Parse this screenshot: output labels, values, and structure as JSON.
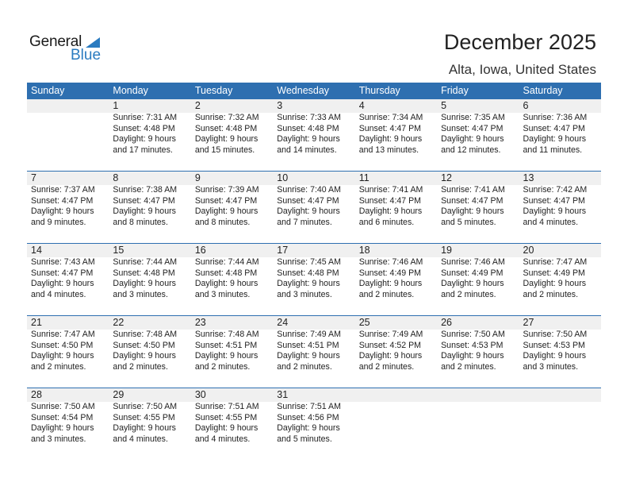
{
  "logo": {
    "word1": "General",
    "word2": "Blue"
  },
  "header": {
    "title": "December 2025",
    "location": "Alta, Iowa, United States"
  },
  "colors": {
    "header_bg": "#2e6fb0",
    "date_band": "#f0f0f0",
    "logo_blue": "#2a7bc0"
  },
  "weekdays": [
    "Sunday",
    "Monday",
    "Tuesday",
    "Wednesday",
    "Thursday",
    "Friday",
    "Saturday"
  ],
  "weeks": [
    [
      null,
      {
        "date": "1",
        "sunrise": "Sunrise: 7:31 AM",
        "sunset": "Sunset: 4:48 PM",
        "daylight1": "Daylight: 9 hours",
        "daylight2": "and 17 minutes."
      },
      {
        "date": "2",
        "sunrise": "Sunrise: 7:32 AM",
        "sunset": "Sunset: 4:48 PM",
        "daylight1": "Daylight: 9 hours",
        "daylight2": "and 15 minutes."
      },
      {
        "date": "3",
        "sunrise": "Sunrise: 7:33 AM",
        "sunset": "Sunset: 4:48 PM",
        "daylight1": "Daylight: 9 hours",
        "daylight2": "and 14 minutes."
      },
      {
        "date": "4",
        "sunrise": "Sunrise: 7:34 AM",
        "sunset": "Sunset: 4:47 PM",
        "daylight1": "Daylight: 9 hours",
        "daylight2": "and 13 minutes."
      },
      {
        "date": "5",
        "sunrise": "Sunrise: 7:35 AM",
        "sunset": "Sunset: 4:47 PM",
        "daylight1": "Daylight: 9 hours",
        "daylight2": "and 12 minutes."
      },
      {
        "date": "6",
        "sunrise": "Sunrise: 7:36 AM",
        "sunset": "Sunset: 4:47 PM",
        "daylight1": "Daylight: 9 hours",
        "daylight2": "and 11 minutes."
      }
    ],
    [
      {
        "date": "7",
        "sunrise": "Sunrise: 7:37 AM",
        "sunset": "Sunset: 4:47 PM",
        "daylight1": "Daylight: 9 hours",
        "daylight2": "and 9 minutes."
      },
      {
        "date": "8",
        "sunrise": "Sunrise: 7:38 AM",
        "sunset": "Sunset: 4:47 PM",
        "daylight1": "Daylight: 9 hours",
        "daylight2": "and 8 minutes."
      },
      {
        "date": "9",
        "sunrise": "Sunrise: 7:39 AM",
        "sunset": "Sunset: 4:47 PM",
        "daylight1": "Daylight: 9 hours",
        "daylight2": "and 8 minutes."
      },
      {
        "date": "10",
        "sunrise": "Sunrise: 7:40 AM",
        "sunset": "Sunset: 4:47 PM",
        "daylight1": "Daylight: 9 hours",
        "daylight2": "and 7 minutes."
      },
      {
        "date": "11",
        "sunrise": "Sunrise: 7:41 AM",
        "sunset": "Sunset: 4:47 PM",
        "daylight1": "Daylight: 9 hours",
        "daylight2": "and 6 minutes."
      },
      {
        "date": "12",
        "sunrise": "Sunrise: 7:41 AM",
        "sunset": "Sunset: 4:47 PM",
        "daylight1": "Daylight: 9 hours",
        "daylight2": "and 5 minutes."
      },
      {
        "date": "13",
        "sunrise": "Sunrise: 7:42 AM",
        "sunset": "Sunset: 4:47 PM",
        "daylight1": "Daylight: 9 hours",
        "daylight2": "and 4 minutes."
      }
    ],
    [
      {
        "date": "14",
        "sunrise": "Sunrise: 7:43 AM",
        "sunset": "Sunset: 4:47 PM",
        "daylight1": "Daylight: 9 hours",
        "daylight2": "and 4 minutes."
      },
      {
        "date": "15",
        "sunrise": "Sunrise: 7:44 AM",
        "sunset": "Sunset: 4:48 PM",
        "daylight1": "Daylight: 9 hours",
        "daylight2": "and 3 minutes."
      },
      {
        "date": "16",
        "sunrise": "Sunrise: 7:44 AM",
        "sunset": "Sunset: 4:48 PM",
        "daylight1": "Daylight: 9 hours",
        "daylight2": "and 3 minutes."
      },
      {
        "date": "17",
        "sunrise": "Sunrise: 7:45 AM",
        "sunset": "Sunset: 4:48 PM",
        "daylight1": "Daylight: 9 hours",
        "daylight2": "and 3 minutes."
      },
      {
        "date": "18",
        "sunrise": "Sunrise: 7:46 AM",
        "sunset": "Sunset: 4:49 PM",
        "daylight1": "Daylight: 9 hours",
        "daylight2": "and 2 minutes."
      },
      {
        "date": "19",
        "sunrise": "Sunrise: 7:46 AM",
        "sunset": "Sunset: 4:49 PM",
        "daylight1": "Daylight: 9 hours",
        "daylight2": "and 2 minutes."
      },
      {
        "date": "20",
        "sunrise": "Sunrise: 7:47 AM",
        "sunset": "Sunset: 4:49 PM",
        "daylight1": "Daylight: 9 hours",
        "daylight2": "and 2 minutes."
      }
    ],
    [
      {
        "date": "21",
        "sunrise": "Sunrise: 7:47 AM",
        "sunset": "Sunset: 4:50 PM",
        "daylight1": "Daylight: 9 hours",
        "daylight2": "and 2 minutes."
      },
      {
        "date": "22",
        "sunrise": "Sunrise: 7:48 AM",
        "sunset": "Sunset: 4:50 PM",
        "daylight1": "Daylight: 9 hours",
        "daylight2": "and 2 minutes."
      },
      {
        "date": "23",
        "sunrise": "Sunrise: 7:48 AM",
        "sunset": "Sunset: 4:51 PM",
        "daylight1": "Daylight: 9 hours",
        "daylight2": "and 2 minutes."
      },
      {
        "date": "24",
        "sunrise": "Sunrise: 7:49 AM",
        "sunset": "Sunset: 4:51 PM",
        "daylight1": "Daylight: 9 hours",
        "daylight2": "and 2 minutes."
      },
      {
        "date": "25",
        "sunrise": "Sunrise: 7:49 AM",
        "sunset": "Sunset: 4:52 PM",
        "daylight1": "Daylight: 9 hours",
        "daylight2": "and 2 minutes."
      },
      {
        "date": "26",
        "sunrise": "Sunrise: 7:50 AM",
        "sunset": "Sunset: 4:53 PM",
        "daylight1": "Daylight: 9 hours",
        "daylight2": "and 2 minutes."
      },
      {
        "date": "27",
        "sunrise": "Sunrise: 7:50 AM",
        "sunset": "Sunset: 4:53 PM",
        "daylight1": "Daylight: 9 hours",
        "daylight2": "and 3 minutes."
      }
    ],
    [
      {
        "date": "28",
        "sunrise": "Sunrise: 7:50 AM",
        "sunset": "Sunset: 4:54 PM",
        "daylight1": "Daylight: 9 hours",
        "daylight2": "and 3 minutes."
      },
      {
        "date": "29",
        "sunrise": "Sunrise: 7:50 AM",
        "sunset": "Sunset: 4:55 PM",
        "daylight1": "Daylight: 9 hours",
        "daylight2": "and 4 minutes."
      },
      {
        "date": "30",
        "sunrise": "Sunrise: 7:51 AM",
        "sunset": "Sunset: 4:55 PM",
        "daylight1": "Daylight: 9 hours",
        "daylight2": "and 4 minutes."
      },
      {
        "date": "31",
        "sunrise": "Sunrise: 7:51 AM",
        "sunset": "Sunset: 4:56 PM",
        "daylight1": "Daylight: 9 hours",
        "daylight2": "and 5 minutes."
      },
      null,
      null,
      null
    ]
  ]
}
